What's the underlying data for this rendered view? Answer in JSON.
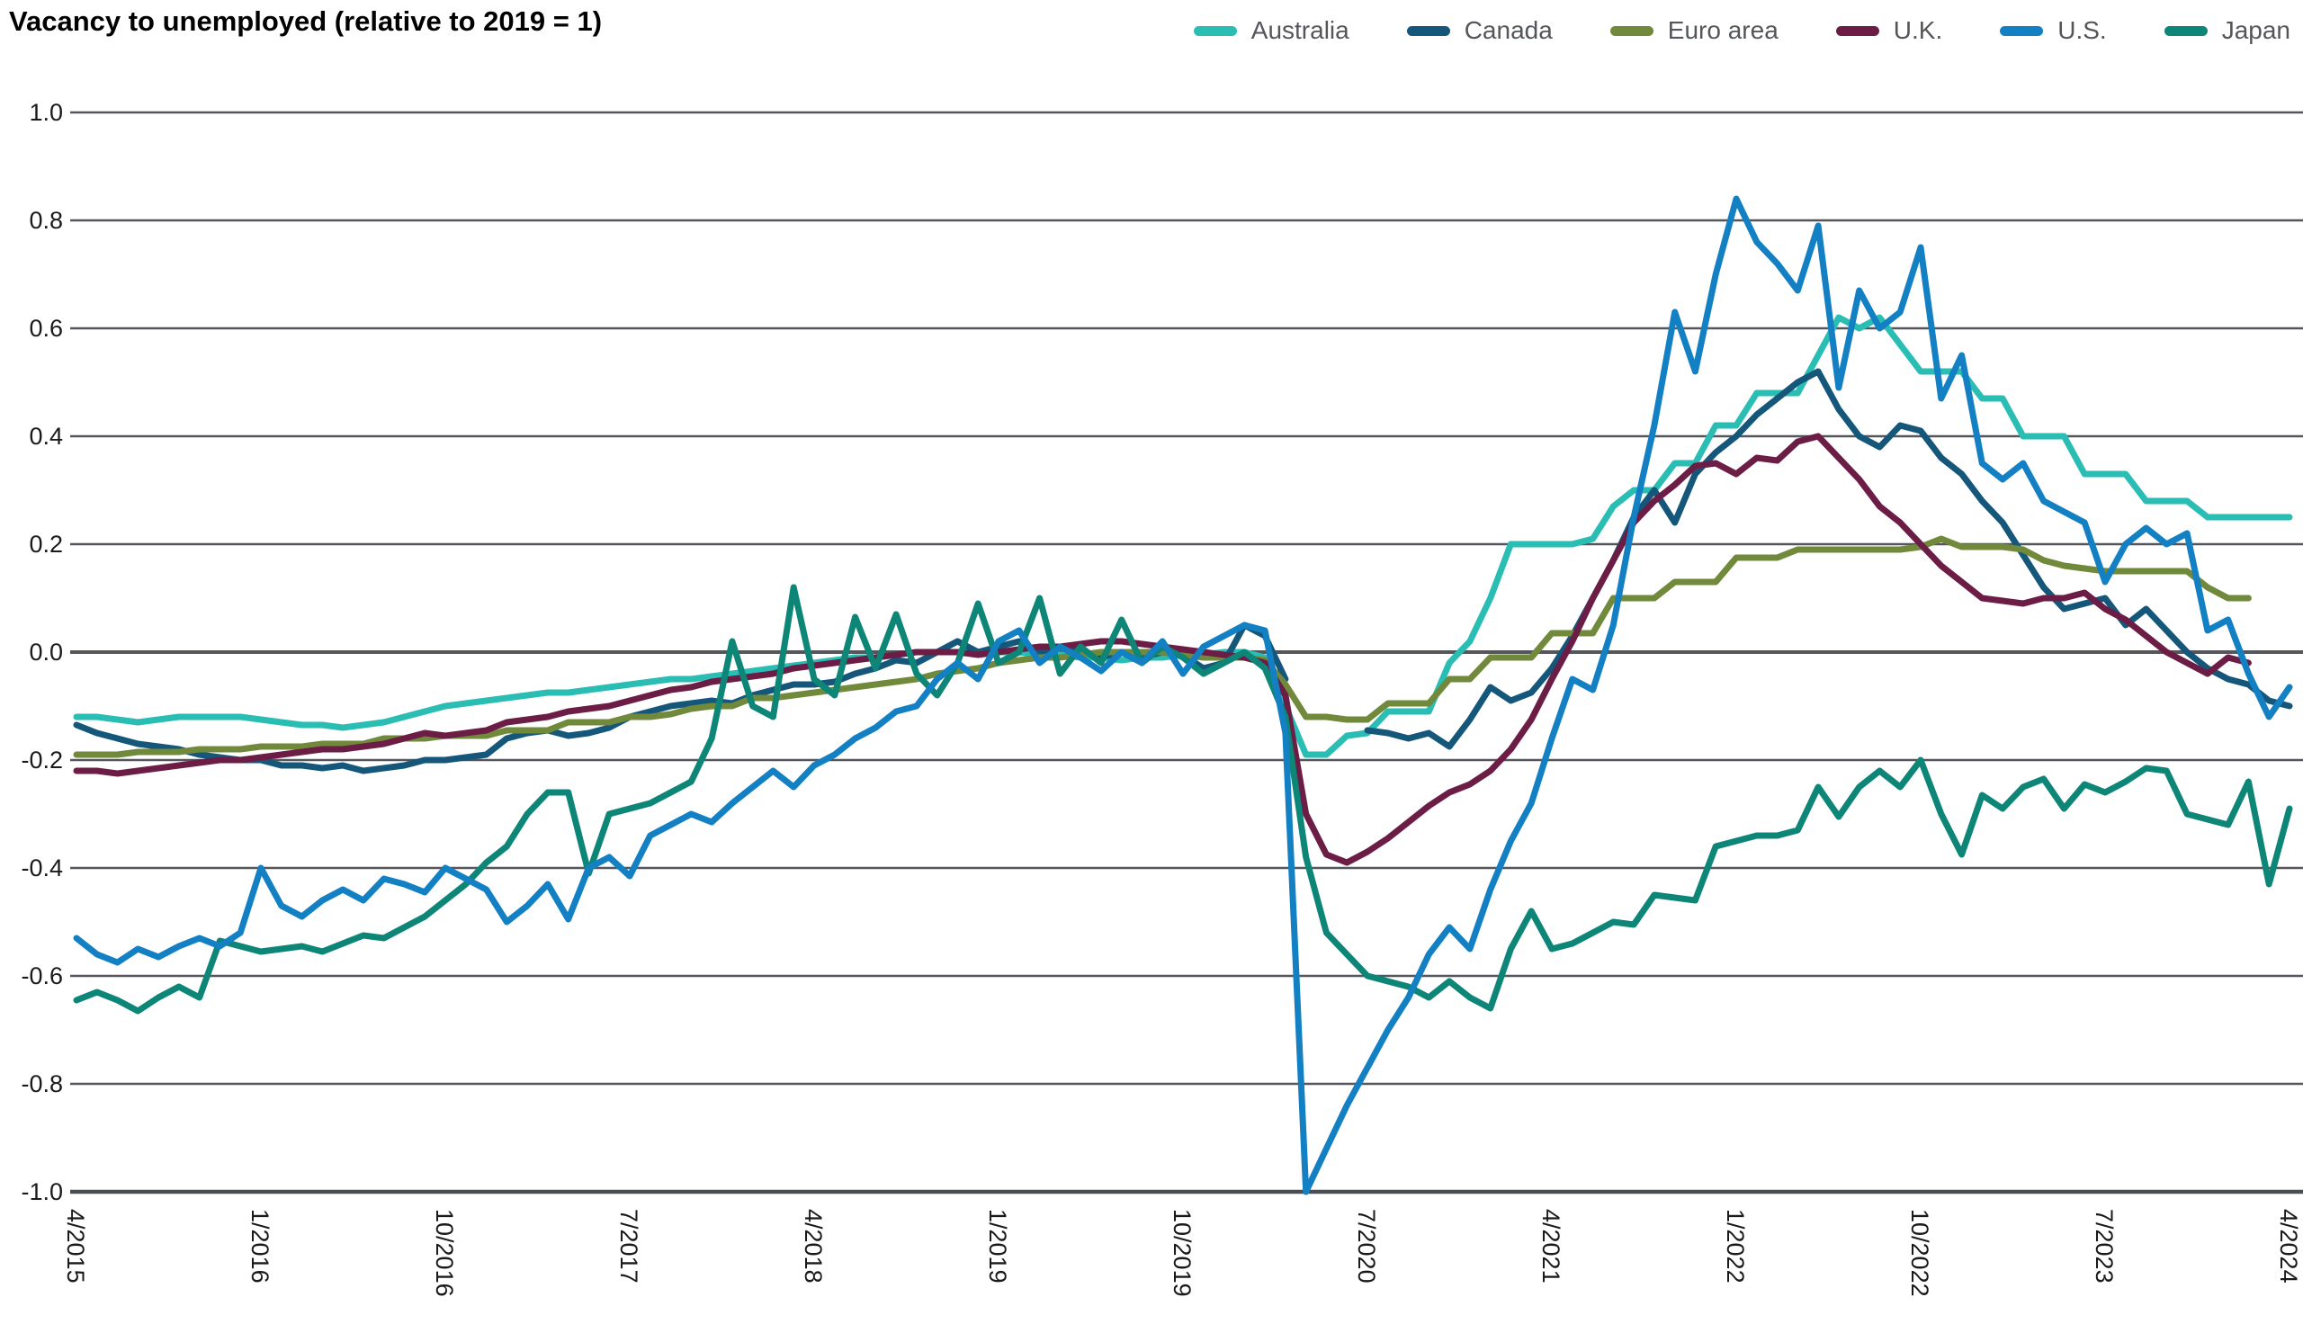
{
  "title": "Vacancy to unemployed (relative to 2019 = 1)",
  "colors": {
    "background": "#ffffff",
    "grid_line": "#54565b",
    "zero_line": "#54565b",
    "axis_line": "#4a4d52",
    "tick_text": "#1a1a1a",
    "legend_text": "#54565b",
    "title_text": "#000000"
  },
  "chart_data": {
    "type": "line",
    "title": "Vacancy to unemployed (relative to 2019 = 1)",
    "xlabel": "",
    "ylabel": "",
    "ylim": [
      -1.0,
      1.0
    ],
    "grid": "horizontal",
    "legend_position": "top-right",
    "x_unit": "monthly from 4/2015 to 4/2024",
    "x_tick_labels": [
      "4/2015",
      "1/2016",
      "10/2016",
      "7/2017",
      "4/2018",
      "1/2019",
      "10/2019",
      "7/2020",
      "4/2021",
      "1/2022",
      "10/2022",
      "7/2023",
      "4/2024"
    ],
    "x_tick_month_indices": [
      0,
      9,
      18,
      27,
      36,
      45,
      54,
      63,
      72,
      81,
      90,
      99,
      108
    ],
    "y_ticks": [
      {
        "label": "1.0",
        "value": 1.0
      },
      {
        "label": "0.8",
        "value": 0.8
      },
      {
        "label": "0.6",
        "value": 0.6
      },
      {
        "label": "0.4",
        "value": 0.4
      },
      {
        "label": "0.2",
        "value": 0.2
      },
      {
        "label": "0.0",
        "value": 0.0
      },
      {
        "label": "-0.2",
        "value": -0.2
      },
      {
        "label": "-0.4",
        "value": -0.4
      },
      {
        "label": "-0.6",
        "value": -0.6
      },
      {
        "label": "-0.8",
        "value": -0.8
      },
      {
        "label": "-1.0",
        "value": -1.0
      }
    ],
    "draw_order": [
      0,
      1,
      2,
      3,
      5,
      4
    ],
    "series": [
      {
        "name": "Australia",
        "color": "#29bdb4",
        "values": [
          -0.12,
          -0.12,
          -0.125,
          -0.13,
          -0.125,
          -0.12,
          -0.12,
          -0.12,
          -0.12,
          -0.125,
          -0.13,
          -0.135,
          -0.135,
          -0.14,
          -0.135,
          -0.13,
          -0.12,
          -0.11,
          -0.1,
          -0.095,
          -0.09,
          -0.085,
          -0.08,
          -0.075,
          -0.075,
          -0.07,
          -0.065,
          -0.06,
          -0.055,
          -0.05,
          -0.05,
          -0.045,
          -0.04,
          -0.035,
          -0.03,
          -0.025,
          -0.02,
          -0.015,
          -0.01,
          -0.01,
          -0.005,
          0.0,
          0.0,
          0.0,
          0.0,
          0.0,
          0.0,
          -0.005,
          -0.005,
          -0.01,
          -0.01,
          -0.015,
          -0.01,
          -0.01,
          -0.005,
          -0.005,
          0.0,
          0.0,
          -0.01,
          -0.1,
          -0.19,
          -0.19,
          -0.155,
          -0.15,
          -0.11,
          -0.11,
          -0.11,
          -0.02,
          0.02,
          0.1,
          0.2,
          0.2,
          0.2,
          0.2,
          0.21,
          0.27,
          0.3,
          0.3,
          0.35,
          0.35,
          0.42,
          0.42,
          0.48,
          0.48,
          0.48,
          0.55,
          0.62,
          0.6,
          0.62,
          0.57,
          0.52,
          0.52,
          0.52,
          0.47,
          0.47,
          0.4,
          0.4,
          0.4,
          0.33,
          0.33,
          0.33,
          0.28,
          0.28,
          0.28,
          0.25,
          0.25,
          0.25,
          0.25,
          0.25
        ]
      },
      {
        "name": "Canada",
        "color": "#15577a",
        "values": [
          -0.135,
          -0.15,
          -0.16,
          -0.17,
          -0.175,
          -0.18,
          -0.19,
          -0.195,
          -0.2,
          -0.2,
          -0.21,
          -0.21,
          -0.215,
          -0.21,
          -0.22,
          -0.215,
          -0.21,
          -0.2,
          -0.2,
          -0.195,
          -0.19,
          -0.16,
          -0.15,
          -0.145,
          -0.155,
          -0.15,
          -0.14,
          -0.12,
          -0.11,
          -0.1,
          -0.095,
          -0.09,
          -0.095,
          -0.08,
          -0.07,
          -0.06,
          -0.06,
          -0.055,
          -0.04,
          -0.03,
          -0.015,
          -0.02,
          0.0,
          0.02,
          0.0,
          0.01,
          0.02,
          0.0,
          0.01,
          0.0,
          -0.01,
          0.0,
          -0.01,
          0.0,
          -0.005,
          -0.03,
          -0.02,
          0.05,
          0.03,
          -0.05,
          null,
          null,
          null,
          -0.145,
          -0.15,
          -0.16,
          -0.15,
          -0.175,
          -0.125,
          -0.065,
          -0.09,
          -0.075,
          -0.03,
          0.03,
          0.1,
          0.17,
          0.25,
          0.3,
          0.24,
          0.33,
          0.37,
          0.4,
          0.44,
          0.47,
          0.5,
          0.52,
          0.45,
          0.4,
          0.38,
          0.42,
          0.41,
          0.36,
          0.33,
          0.28,
          0.24,
          0.18,
          0.12,
          0.08,
          0.09,
          0.1,
          0.05,
          0.08,
          0.04,
          0.0,
          -0.03,
          -0.05,
          -0.06,
          -0.09,
          -0.1
        ]
      },
      {
        "name": "Euro area",
        "color": "#71893b",
        "values": [
          -0.19,
          -0.19,
          -0.19,
          -0.185,
          -0.185,
          -0.185,
          -0.18,
          -0.18,
          -0.18,
          -0.175,
          -0.175,
          -0.175,
          -0.17,
          -0.17,
          -0.17,
          -0.16,
          -0.16,
          -0.16,
          -0.155,
          -0.155,
          -0.155,
          -0.145,
          -0.145,
          -0.145,
          -0.13,
          -0.13,
          -0.13,
          -0.12,
          -0.12,
          -0.115,
          -0.105,
          -0.1,
          -0.1,
          -0.085,
          -0.085,
          -0.08,
          -0.075,
          -0.07,
          -0.065,
          -0.06,
          -0.055,
          -0.05,
          -0.04,
          -0.035,
          -0.03,
          -0.02,
          -0.015,
          -0.01,
          -0.01,
          -0.005,
          0.0,
          0.0,
          0.0,
          0.0,
          -0.005,
          -0.01,
          -0.01,
          -0.01,
          -0.015,
          -0.06,
          -0.12,
          -0.12,
          -0.125,
          -0.125,
          -0.095,
          -0.095,
          -0.095,
          -0.05,
          -0.05,
          -0.01,
          -0.01,
          -0.01,
          0.035,
          0.035,
          0.035,
          0.1,
          0.1,
          0.1,
          0.13,
          0.13,
          0.13,
          0.175,
          0.175,
          0.175,
          0.19,
          0.19,
          0.19,
          0.19,
          0.19,
          0.19,
          0.195,
          0.21,
          0.195,
          0.195,
          0.195,
          0.19,
          0.17,
          0.16,
          0.155,
          0.15,
          0.15,
          0.15,
          0.15,
          0.15,
          0.12,
          0.1,
          0.1,
          null,
          null
        ]
      },
      {
        "name": "U.K.",
        "color": "#6c1d45",
        "values": [
          -0.22,
          -0.22,
          -0.225,
          -0.22,
          -0.215,
          -0.21,
          -0.205,
          -0.2,
          -0.2,
          -0.195,
          -0.19,
          -0.185,
          -0.18,
          -0.18,
          -0.175,
          -0.17,
          -0.16,
          -0.15,
          -0.155,
          -0.15,
          -0.145,
          -0.13,
          -0.125,
          -0.12,
          -0.11,
          -0.105,
          -0.1,
          -0.09,
          -0.08,
          -0.07,
          -0.065,
          -0.055,
          -0.05,
          -0.045,
          -0.04,
          -0.03,
          -0.025,
          -0.02,
          -0.015,
          -0.01,
          -0.005,
          0.0,
          0.0,
          0.0,
          -0.005,
          0.0,
          0.005,
          0.01,
          0.01,
          0.015,
          0.02,
          0.02,
          0.015,
          0.01,
          0.005,
          0.0,
          -0.005,
          -0.01,
          -0.02,
          -0.08,
          -0.3,
          -0.375,
          -0.39,
          -0.37,
          -0.345,
          -0.315,
          -0.285,
          -0.26,
          -0.245,
          -0.22,
          -0.18,
          -0.125,
          -0.05,
          0.02,
          0.1,
          0.17,
          0.24,
          0.28,
          0.31,
          0.345,
          0.35,
          0.33,
          0.36,
          0.355,
          0.39,
          0.4,
          0.36,
          0.32,
          0.27,
          0.24,
          0.2,
          0.16,
          0.13,
          0.1,
          0.095,
          0.09,
          0.1,
          0.1,
          0.11,
          0.08,
          0.06,
          0.03,
          0.0,
          -0.02,
          -0.04,
          -0.01,
          -0.02,
          null,
          null
        ]
      },
      {
        "name": "U.S.",
        "color": "#1380c3",
        "values": [
          -0.53,
          -0.56,
          -0.575,
          -0.55,
          -0.565,
          -0.545,
          -0.53,
          -0.545,
          -0.52,
          -0.4,
          -0.47,
          -0.49,
          -0.46,
          -0.44,
          -0.46,
          -0.42,
          -0.43,
          -0.445,
          -0.4,
          -0.42,
          -0.44,
          -0.5,
          -0.47,
          -0.43,
          -0.495,
          -0.4,
          -0.38,
          -0.415,
          -0.34,
          -0.32,
          -0.3,
          -0.315,
          -0.28,
          -0.25,
          -0.22,
          -0.25,
          -0.21,
          -0.19,
          -0.16,
          -0.14,
          -0.11,
          -0.1,
          -0.05,
          -0.02,
          -0.05,
          0.02,
          0.04,
          -0.02,
          0.01,
          -0.01,
          -0.035,
          0.0,
          -0.02,
          0.02,
          -0.04,
          0.01,
          0.03,
          0.05,
          0.04,
          -0.15,
          -1.0,
          -0.92,
          -0.84,
          -0.77,
          -0.7,
          -0.64,
          -0.56,
          -0.51,
          -0.55,
          -0.44,
          -0.35,
          -0.28,
          -0.16,
          -0.05,
          -0.07,
          0.05,
          0.25,
          0.42,
          0.63,
          0.52,
          0.7,
          0.84,
          0.76,
          0.72,
          0.67,
          0.79,
          0.49,
          0.67,
          0.6,
          0.63,
          0.75,
          0.47,
          0.55,
          0.35,
          0.32,
          0.35,
          0.28,
          0.26,
          0.24,
          0.13,
          0.2,
          0.23,
          0.2,
          0.22,
          0.04,
          0.06,
          -0.04,
          -0.12,
          -0.065
        ]
      },
      {
        "name": "Japan",
        "color": "#0d8577",
        "values": [
          -0.645,
          -0.63,
          -0.645,
          -0.665,
          -0.64,
          -0.62,
          -0.64,
          -0.535,
          -0.545,
          -0.555,
          -0.55,
          -0.545,
          -0.555,
          -0.54,
          -0.525,
          -0.53,
          -0.51,
          -0.49,
          -0.46,
          -0.43,
          -0.39,
          -0.36,
          -0.3,
          -0.26,
          -0.26,
          -0.41,
          -0.3,
          -0.29,
          -0.28,
          -0.26,
          -0.24,
          -0.16,
          0.02,
          -0.1,
          -0.12,
          0.12,
          -0.05,
          -0.08,
          0.065,
          -0.03,
          0.07,
          -0.04,
          -0.08,
          -0.02,
          0.09,
          -0.02,
          0.0,
          0.1,
          -0.04,
          0.01,
          -0.02,
          0.06,
          -0.02,
          0.01,
          -0.01,
          -0.04,
          -0.02,
          0.0,
          -0.03,
          -0.12,
          -0.38,
          -0.52,
          -0.56,
          -0.6,
          -0.61,
          -0.62,
          -0.64,
          -0.61,
          -0.64,
          -0.66,
          -0.55,
          -0.48,
          -0.55,
          -0.54,
          -0.52,
          -0.5,
          -0.505,
          -0.45,
          -0.455,
          -0.46,
          -0.36,
          -0.35,
          -0.34,
          -0.34,
          -0.33,
          -0.25,
          -0.305,
          -0.25,
          -0.22,
          -0.25,
          -0.2,
          -0.3,
          -0.375,
          -0.265,
          -0.29,
          -0.25,
          -0.235,
          -0.29,
          -0.245,
          -0.26,
          -0.24,
          -0.215,
          -0.22,
          -0.3,
          -0.31,
          -0.32,
          -0.24,
          -0.43,
          -0.29
        ]
      }
    ]
  }
}
